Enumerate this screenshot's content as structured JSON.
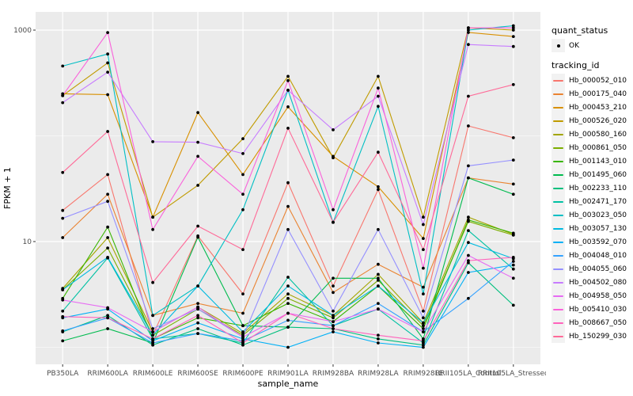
{
  "y_axis": {
    "label": "FPKM + 1",
    "tick_labels": [
      "1000",
      "10"
    ]
  },
  "x_axis": {
    "label": "sample_name"
  },
  "legend": {
    "quant_status": {
      "title": "quant_status",
      "items": [
        {
          "label": "OK",
          "marker": "point",
          "color": "#000000"
        }
      ]
    },
    "tracking": {
      "title": "tracking_id"
    }
  },
  "chart_data": {
    "type": "line",
    "title": "",
    "xlabel": "sample_name",
    "ylabel": "FPKM + 1",
    "y_scale": "log10",
    "y_ticks": [
      1000,
      10
    ],
    "y_minor_gridlines": [
      100,
      1
    ],
    "ylim": [
      1,
      1300
    ],
    "grid": true,
    "legend_position": "right",
    "panel_bg": "#EBEBEB",
    "grid_color": "#FFFFFF",
    "point_color": "#000000",
    "tick_label_color": "#4D4D4D",
    "categories": [
      "PB350LA",
      "RRIM600LA",
      "RRIM600LE",
      "RRIM600SE",
      "RRIM600PE",
      "RRIM901LA",
      "RRIM928BA",
      "RRIM928LA",
      "RRIM928LE",
      "RRII105LA_Control",
      "RRII105LA_Stressed"
    ],
    "series": [
      {
        "name": "Hb_000052_010",
        "color": "#F8766D",
        "values": [
          19.7,
          43,
          1.3,
          11.3,
          3.2,
          36,
          3.8,
          31,
          2.2,
          124,
          96
        ]
      },
      {
        "name": "Hb_000175_040",
        "color": "#EA8331",
        "values": [
          10.9,
          28,
          2.0,
          2.6,
          2.1,
          21.5,
          3.3,
          6.1,
          3.7,
          40,
          35
        ]
      },
      {
        "name": "Hb_000453_210",
        "color": "#D89000",
        "values": [
          250,
          245,
          17,
          166,
          43,
          188,
          64,
          33,
          10.7,
          950,
          870
        ]
      },
      {
        "name": "Hb_000526_020",
        "color": "#C09B00",
        "values": [
          240,
          490,
          17,
          34,
          94,
          365,
          62,
          365,
          17,
          1050,
          1000
        ]
      },
      {
        "name": "Hb_000580_160",
        "color": "#A3A500",
        "values": [
          3.6,
          10.9,
          1.4,
          2.4,
          1.35,
          3.2,
          2.0,
          4.9,
          1.7,
          17,
          11.7
        ]
      },
      {
        "name": "Hb_000861_050",
        "color": "#7CAE00",
        "values": [
          3.5,
          8.7,
          1.3,
          2.3,
          1.3,
          2.9,
          1.9,
          4.3,
          1.6,
          15.5,
          11.5
        ]
      },
      {
        "name": "Hb_001143_010",
        "color": "#39B600",
        "values": [
          2.9,
          13.7,
          1.2,
          1.9,
          1.6,
          2.6,
          1.75,
          3.8,
          1.5,
          16,
          12
        ]
      },
      {
        "name": "Hb_001495_060",
        "color": "#00BB4E",
        "values": [
          1.15,
          1.5,
          1.1,
          11,
          1.6,
          1.55,
          4.5,
          4.5,
          1.2,
          40,
          28
        ]
      },
      {
        "name": "Hb_002233_110",
        "color": "#00BF7D",
        "values": [
          1.4,
          2.0,
          1.05,
          1.5,
          1.05,
          1.55,
          1.5,
          1.2,
          1.05,
          6.3,
          2.5
        ]
      },
      {
        "name": "Hb_002471_170",
        "color": "#00C1A3",
        "values": [
          2.2,
          7.0,
          1.2,
          1.35,
          1.1,
          4.6,
          1.6,
          2.3,
          1.1,
          12.7,
          5.5
        ]
      },
      {
        "name": "Hb_003023_050",
        "color": "#00BFC4",
        "values": [
          457,
          594,
          2.0,
          3.8,
          20,
          270,
          15.2,
          190,
          3.2,
          1000,
          1100
        ]
      },
      {
        "name": "Hb_003057_130",
        "color": "#00BAE0",
        "values": [
          3.5,
          7.1,
          1.3,
          3.8,
          1.4,
          3.8,
          2.0,
          3.8,
          1.7,
          9.8,
          6.9
        ]
      },
      {
        "name": "Hb_003592_070",
        "color": "#00B0F6",
        "values": [
          1.9,
          2.3,
          1.15,
          1.7,
          1.2,
          1.0,
          1.4,
          1.1,
          1.0,
          5.1,
          6.0
        ]
      },
      {
        "name": "Hb_004048_010",
        "color": "#35A2FF",
        "values": [
          1.43,
          1.9,
          1.1,
          1.35,
          1.15,
          1.8,
          1.6,
          2.6,
          1.4,
          2.9,
          6.5
        ]
      },
      {
        "name": "Hb_004055_060",
        "color": "#9590FF",
        "values": [
          16.6,
          24,
          1.5,
          2.3,
          1.25,
          13,
          2.2,
          13,
          1.9,
          52,
          59
        ]
      },
      {
        "name": "Hb_004502_080",
        "color": "#C77CFF",
        "values": [
          206,
          400,
          88,
          87,
          68,
          270,
          114,
          237,
          14.5,
          730,
          700
        ]
      },
      {
        "name": "Hb_004958_050",
        "color": "#E76BF3",
        "values": [
          2.8,
          2.37,
          1.4,
          2.4,
          1.25,
          2.1,
          1.75,
          2.3,
          1.4,
          7.4,
          4.5
        ]
      },
      {
        "name": "Hb_005410_030",
        "color": "#FA62DB",
        "values": [
          240,
          948,
          13,
          64,
          28,
          333,
          20,
          283,
          5.6,
          1050,
          1050
        ]
      },
      {
        "name": "Hb_008667_050",
        "color": "#FF62BC",
        "values": [
          1.95,
          1.9,
          1.2,
          2.0,
          1.1,
          2.1,
          1.5,
          1.3,
          1.15,
          6.6,
          7.1
        ]
      },
      {
        "name": "Hb_150299_030",
        "color": "#FF6A98",
        "values": [
          45,
          110,
          4.1,
          14,
          8.4,
          118,
          15.2,
          70,
          8.4,
          237,
          305
        ]
      }
    ]
  }
}
